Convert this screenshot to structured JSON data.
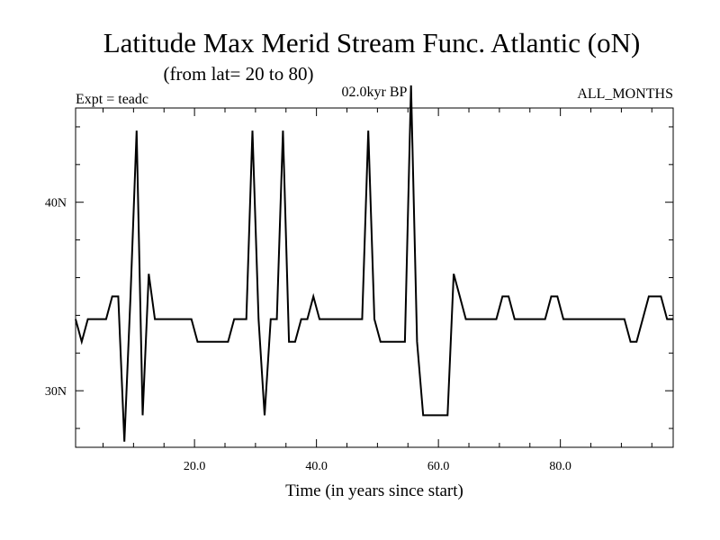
{
  "chart_data": {
    "type": "line",
    "title": "Latitude Max Merid Stream Func. Atlantic (oN)",
    "subtitle": "(from lat= 20 to 80)",
    "experiment": "Expt = teadc",
    "period": "02.0kyr BP",
    "months": "ALL_MONTHS",
    "xlabel": "Time (in years since start)",
    "ylabel": "",
    "xlim": [
      0.5,
      98.5
    ],
    "ylim": [
      27,
      45
    ],
    "x_ticks": [
      {
        "value": 20,
        "label": "20.0"
      },
      {
        "value": 40,
        "label": "40.0"
      },
      {
        "value": 60,
        "label": "60.0"
      },
      {
        "value": 80,
        "label": "80.0"
      }
    ],
    "x_minor_step": 5,
    "y_ticks": [
      {
        "value": 30,
        "label": "30N"
      },
      {
        "value": 40,
        "label": "40N"
      }
    ],
    "y_minor_step": 2,
    "grid": false,
    "series": [
      {
        "color": "#000000",
        "x": [
          0.5,
          1.5,
          2.5,
          3.5,
          4.5,
          5.5,
          6.5,
          7.5,
          8.5,
          9.5,
          10.5,
          11.5,
          12.5,
          13.5,
          14.5,
          15.5,
          16.5,
          17.5,
          18.5,
          19.5,
          20.5,
          21.5,
          22.5,
          23.5,
          24.5,
          25.5,
          26.5,
          27.5,
          28.5,
          29.5,
          30.5,
          31.5,
          32.5,
          33.5,
          34.5,
          35.5,
          36.5,
          37.5,
          38.5,
          39.5,
          40.5,
          41.5,
          42.5,
          43.5,
          44.5,
          45.5,
          46.5,
          47.5,
          48.5,
          49.5,
          50.5,
          51.5,
          52.5,
          53.5,
          54.5,
          55.5,
          56.5,
          57.5,
          58.5,
          59.5,
          60.5,
          61.5,
          62.5,
          63.5,
          64.5,
          65.5,
          66.5,
          67.5,
          68.5,
          69.5,
          70.5,
          71.5,
          72.5,
          73.5,
          74.5,
          75.5,
          76.5,
          77.5,
          78.5,
          79.5,
          80.5,
          81.5,
          82.5,
          83.5,
          84.5,
          85.5,
          86.5,
          87.5,
          88.5,
          89.5,
          90.5,
          91.5,
          92.5,
          93.5,
          94.5,
          95.5,
          96.5,
          97.5,
          98.5
        ],
        "y": [
          33.8,
          32.6,
          33.8,
          33.8,
          33.8,
          33.8,
          35.0,
          35.0,
          27.3,
          35.0,
          43.8,
          28.7,
          36.2,
          33.8,
          33.8,
          33.8,
          33.8,
          33.8,
          33.8,
          33.8,
          32.6,
          32.6,
          32.6,
          32.6,
          32.6,
          32.6,
          33.8,
          33.8,
          33.8,
          43.8,
          33.8,
          28.7,
          33.8,
          33.8,
          43.8,
          32.6,
          32.6,
          33.8,
          33.8,
          35.0,
          33.8,
          33.8,
          33.8,
          33.8,
          33.8,
          33.8,
          33.8,
          33.8,
          43.8,
          33.8,
          32.6,
          32.6,
          32.6,
          32.6,
          32.6,
          46.2,
          32.6,
          28.7,
          28.7,
          28.7,
          28.7,
          28.7,
          36.2,
          35.0,
          33.8,
          33.8,
          33.8,
          33.8,
          33.8,
          33.8,
          35.0,
          35.0,
          33.8,
          33.8,
          33.8,
          33.8,
          33.8,
          33.8,
          35.0,
          35.0,
          33.8,
          33.8,
          33.8,
          33.8,
          33.8,
          33.8,
          33.8,
          33.8,
          33.8,
          33.8,
          33.8,
          32.6,
          32.6,
          33.8,
          35.0,
          35.0,
          35.0,
          33.8,
          33.8
        ]
      }
    ]
  }
}
